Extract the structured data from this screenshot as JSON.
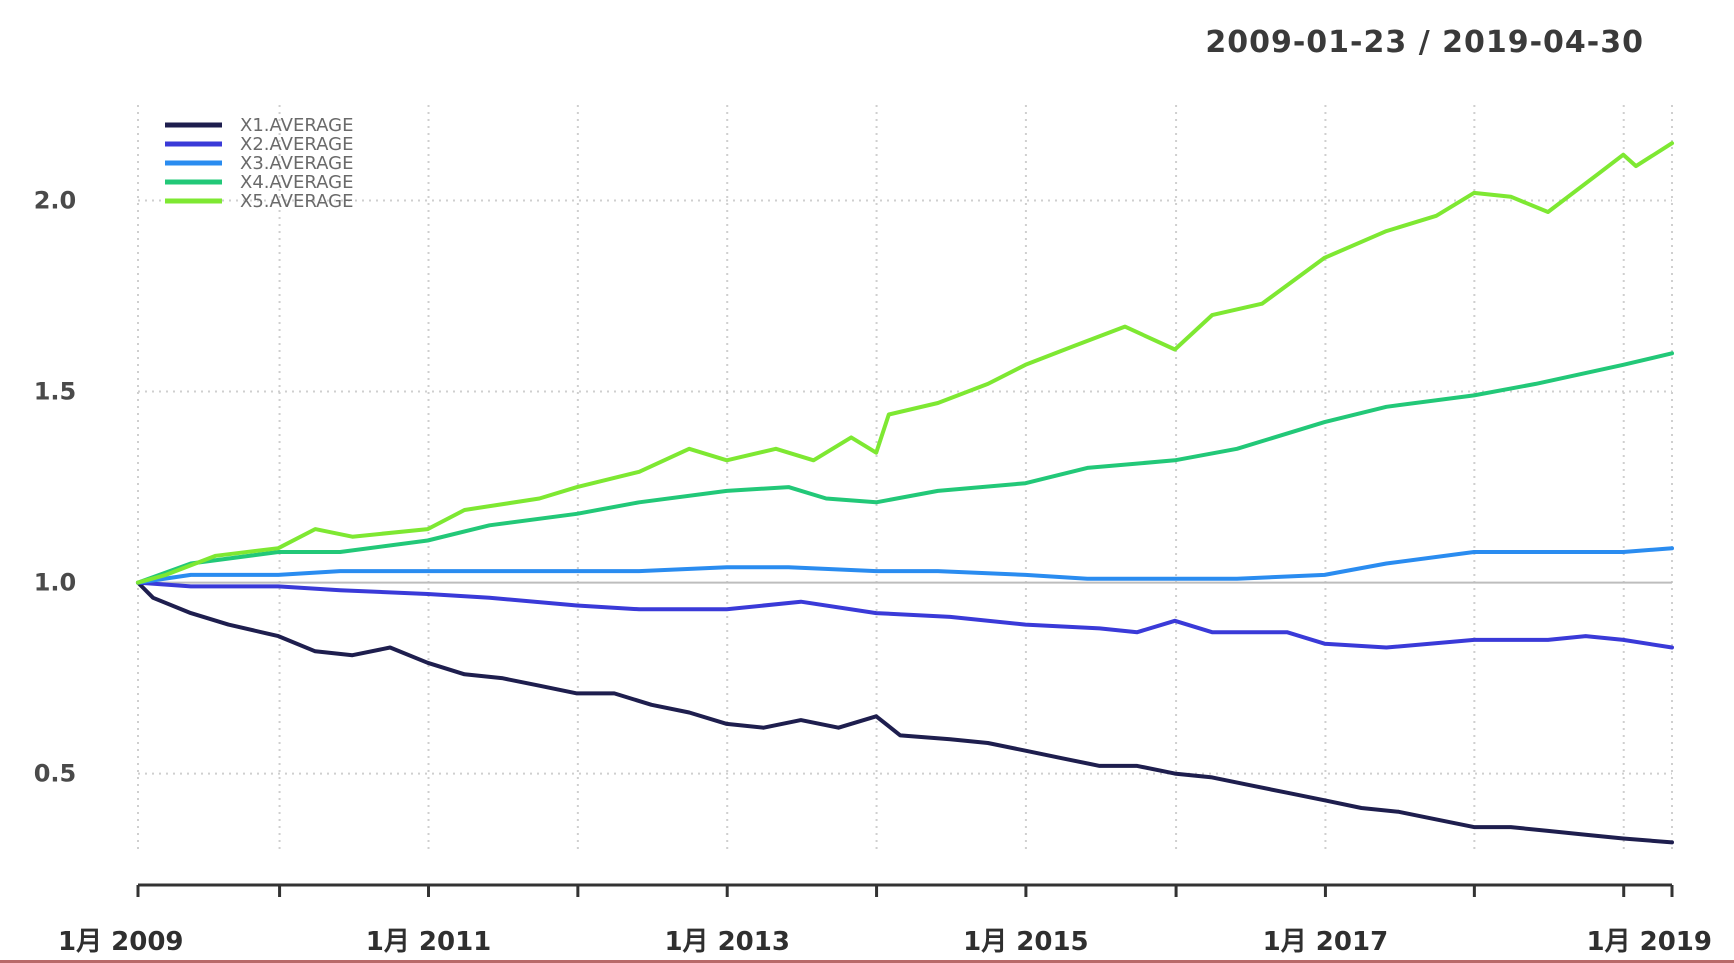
{
  "header": {
    "date_range": "2009-01-23 / 2019-04-30"
  },
  "chart_data": {
    "type": "line",
    "title": "",
    "xlabel": "",
    "ylabel": "",
    "x_range": [
      "2009-01-23",
      "2019-04-30"
    ],
    "ylim": [
      0.3,
      2.25
    ],
    "y_ticks": [
      {
        "value": 0.5,
        "label": "0.5"
      },
      {
        "value": 1.0,
        "label": "1.0"
      },
      {
        "value": 1.5,
        "label": "1.5"
      },
      {
        "value": 2.0,
        "label": "2.0"
      }
    ],
    "x_tick_labels": [
      {
        "date": "2009-01-23",
        "label": "1月 2009"
      },
      {
        "date": "2011-01-03",
        "label": "1月 2011"
      },
      {
        "date": "2013-01-02",
        "label": "1月 2013"
      },
      {
        "date": "2015-01-02",
        "label": "1月 2015"
      },
      {
        "date": "2017-01-03",
        "label": "1月 2017"
      },
      {
        "date": "2019-01-02",
        "label": "1月 2019"
      }
    ],
    "grid_dates": [
      "2009-01-23",
      "2010-01-04",
      "2011-01-03",
      "2012-01-03",
      "2013-01-02",
      "2014-01-02",
      "2015-01-02",
      "2016-01-04",
      "2017-01-03",
      "2018-01-02",
      "2019-01-02",
      "2019-04-30"
    ],
    "grid": true,
    "legend_position": "top-left",
    "series": [
      {
        "name": "X1.AVERAGE",
        "color": "#1e1e4e",
        "points": [
          [
            "2009-01-23",
            1.0
          ],
          [
            "2009-03-01",
            0.96
          ],
          [
            "2009-06-01",
            0.92
          ],
          [
            "2009-09-01",
            0.89
          ],
          [
            "2010-01-01",
            0.86
          ],
          [
            "2010-04-01",
            0.82
          ],
          [
            "2010-07-01",
            0.81
          ],
          [
            "2010-10-01",
            0.83
          ],
          [
            "2011-01-01",
            0.79
          ],
          [
            "2011-04-01",
            0.76
          ],
          [
            "2011-07-01",
            0.75
          ],
          [
            "2011-10-01",
            0.73
          ],
          [
            "2012-01-01",
            0.71
          ],
          [
            "2012-04-01",
            0.71
          ],
          [
            "2012-07-01",
            0.68
          ],
          [
            "2012-10-01",
            0.66
          ],
          [
            "2013-01-01",
            0.63
          ],
          [
            "2013-04-01",
            0.62
          ],
          [
            "2013-07-01",
            0.64
          ],
          [
            "2013-10-01",
            0.62
          ],
          [
            "2014-01-01",
            0.65
          ],
          [
            "2014-03-01",
            0.6
          ],
          [
            "2014-07-01",
            0.59
          ],
          [
            "2014-10-01",
            0.58
          ],
          [
            "2015-01-01",
            0.56
          ],
          [
            "2015-04-01",
            0.54
          ],
          [
            "2015-07-01",
            0.52
          ],
          [
            "2015-10-01",
            0.52
          ],
          [
            "2016-01-01",
            0.5
          ],
          [
            "2016-04-01",
            0.49
          ],
          [
            "2016-07-01",
            0.47
          ],
          [
            "2016-10-01",
            0.45
          ],
          [
            "2017-01-01",
            0.43
          ],
          [
            "2017-04-01",
            0.41
          ],
          [
            "2017-07-01",
            0.4
          ],
          [
            "2017-10-01",
            0.38
          ],
          [
            "2018-01-01",
            0.36
          ],
          [
            "2018-04-01",
            0.36
          ],
          [
            "2018-07-01",
            0.35
          ],
          [
            "2018-10-01",
            0.34
          ],
          [
            "2019-01-01",
            0.33
          ],
          [
            "2019-04-30",
            0.32
          ]
        ]
      },
      {
        "name": "X2.AVERAGE",
        "color": "#3a3ad8",
        "points": [
          [
            "2009-01-23",
            1.0
          ],
          [
            "2009-06-01",
            0.99
          ],
          [
            "2010-01-01",
            0.99
          ],
          [
            "2010-06-01",
            0.98
          ],
          [
            "2011-01-01",
            0.97
          ],
          [
            "2011-06-01",
            0.96
          ],
          [
            "2012-01-01",
            0.94
          ],
          [
            "2012-06-01",
            0.93
          ],
          [
            "2013-01-01",
            0.93
          ],
          [
            "2013-07-01",
            0.95
          ],
          [
            "2014-01-01",
            0.92
          ],
          [
            "2014-07-01",
            0.91
          ],
          [
            "2015-01-01",
            0.89
          ],
          [
            "2015-07-01",
            0.88
          ],
          [
            "2015-10-01",
            0.87
          ],
          [
            "2016-01-01",
            0.9
          ],
          [
            "2016-04-01",
            0.87
          ],
          [
            "2016-10-01",
            0.87
          ],
          [
            "2017-01-01",
            0.84
          ],
          [
            "2017-06-01",
            0.83
          ],
          [
            "2018-01-01",
            0.85
          ],
          [
            "2018-07-01",
            0.85
          ],
          [
            "2018-10-01",
            0.86
          ],
          [
            "2019-01-01",
            0.85
          ],
          [
            "2019-04-30",
            0.83
          ]
        ]
      },
      {
        "name": "X3.AVERAGE",
        "color": "#2a8cf0",
        "points": [
          [
            "2009-01-23",
            1.0
          ],
          [
            "2009-06-01",
            1.02
          ],
          [
            "2010-01-01",
            1.02
          ],
          [
            "2010-06-01",
            1.03
          ],
          [
            "2011-01-01",
            1.03
          ],
          [
            "2011-06-01",
            1.03
          ],
          [
            "2012-01-01",
            1.03
          ],
          [
            "2012-06-01",
            1.03
          ],
          [
            "2013-01-01",
            1.04
          ],
          [
            "2013-06-01",
            1.04
          ],
          [
            "2014-01-01",
            1.03
          ],
          [
            "2014-06-01",
            1.03
          ],
          [
            "2015-01-01",
            1.02
          ],
          [
            "2015-06-01",
            1.01
          ],
          [
            "2016-01-01",
            1.01
          ],
          [
            "2016-06-01",
            1.01
          ],
          [
            "2017-01-01",
            1.02
          ],
          [
            "2017-06-01",
            1.05
          ],
          [
            "2018-01-01",
            1.08
          ],
          [
            "2018-06-01",
            1.08
          ],
          [
            "2019-01-01",
            1.08
          ],
          [
            "2019-04-30",
            1.09
          ]
        ]
      },
      {
        "name": "X4.AVERAGE",
        "color": "#22c878",
        "points": [
          [
            "2009-01-23",
            1.0
          ],
          [
            "2009-06-01",
            1.05
          ],
          [
            "2010-01-01",
            1.08
          ],
          [
            "2010-06-01",
            1.08
          ],
          [
            "2011-01-01",
            1.11
          ],
          [
            "2011-06-01",
            1.15
          ],
          [
            "2012-01-01",
            1.18
          ],
          [
            "2012-06-01",
            1.21
          ],
          [
            "2013-01-01",
            1.24
          ],
          [
            "2013-06-01",
            1.25
          ],
          [
            "2013-09-01",
            1.22
          ],
          [
            "2014-01-01",
            1.21
          ],
          [
            "2014-06-01",
            1.24
          ],
          [
            "2015-01-01",
            1.26
          ],
          [
            "2015-06-01",
            1.3
          ],
          [
            "2016-01-01",
            1.32
          ],
          [
            "2016-06-01",
            1.35
          ],
          [
            "2017-01-01",
            1.42
          ],
          [
            "2017-06-01",
            1.46
          ],
          [
            "2018-01-01",
            1.49
          ],
          [
            "2018-06-01",
            1.52
          ],
          [
            "2019-01-01",
            1.57
          ],
          [
            "2019-04-30",
            1.6
          ]
        ]
      },
      {
        "name": "X5.AVERAGE",
        "color": "#7ee832",
        "points": [
          [
            "2009-01-23",
            1.0
          ],
          [
            "2009-04-01",
            1.02
          ],
          [
            "2009-08-01",
            1.07
          ],
          [
            "2010-01-01",
            1.09
          ],
          [
            "2010-04-01",
            1.14
          ],
          [
            "2010-07-01",
            1.12
          ],
          [
            "2011-01-01",
            1.14
          ],
          [
            "2011-04-01",
            1.19
          ],
          [
            "2011-10-01",
            1.22
          ],
          [
            "2012-01-01",
            1.25
          ],
          [
            "2012-06-01",
            1.29
          ],
          [
            "2012-10-01",
            1.35
          ],
          [
            "2013-01-01",
            1.32
          ],
          [
            "2013-05-01",
            1.35
          ],
          [
            "2013-08-01",
            1.32
          ],
          [
            "2013-11-01",
            1.38
          ],
          [
            "2014-01-01",
            1.34
          ],
          [
            "2014-02-01",
            1.44
          ],
          [
            "2014-06-01",
            1.47
          ],
          [
            "2014-10-01",
            1.52
          ],
          [
            "2015-01-01",
            1.57
          ],
          [
            "2015-05-01",
            1.62
          ],
          [
            "2015-09-01",
            1.67
          ],
          [
            "2016-01-01",
            1.61
          ],
          [
            "2016-04-01",
            1.7
          ],
          [
            "2016-08-01",
            1.73
          ],
          [
            "2017-01-01",
            1.85
          ],
          [
            "2017-06-01",
            1.92
          ],
          [
            "2017-10-01",
            1.96
          ],
          [
            "2018-01-01",
            2.02
          ],
          [
            "2018-04-01",
            2.01
          ],
          [
            "2018-07-01",
            1.97
          ],
          [
            "2018-11-01",
            2.07
          ],
          [
            "2019-01-01",
            2.12
          ],
          [
            "2019-02-01",
            2.09
          ],
          [
            "2019-04-30",
            2.15
          ]
        ]
      }
    ]
  }
}
